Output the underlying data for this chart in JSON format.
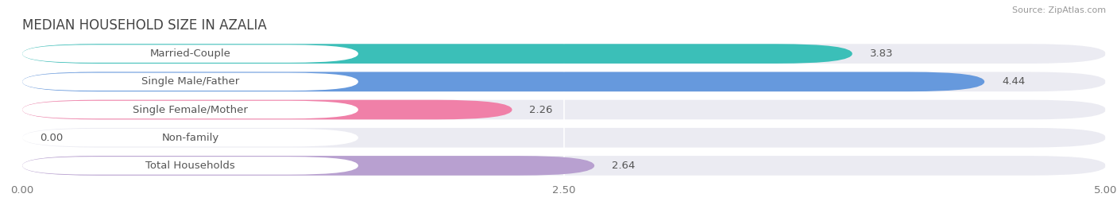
{
  "title": "MEDIAN HOUSEHOLD SIZE IN AZALIA",
  "source": "Source: ZipAtlas.com",
  "categories": [
    "Married-Couple",
    "Single Male/Father",
    "Single Female/Mother",
    "Non-family",
    "Total Households"
  ],
  "values": [
    3.83,
    4.44,
    2.26,
    0.0,
    2.64
  ],
  "bar_colors": [
    "#3bbfb8",
    "#6699dd",
    "#f080a8",
    "#f5c899",
    "#b8a0d0"
  ],
  "label_pill_border_colors": [
    "#3bbfb8",
    "#6699dd",
    "#f080a8",
    "#f5c899",
    "#b8a0d0"
  ],
  "xlim": [
    0,
    5.0
  ],
  "xticks": [
    0.0,
    2.5,
    5.0
  ],
  "xtick_labels": [
    "0.00",
    "2.50",
    "5.00"
  ],
  "page_background_color": "#ffffff",
  "bar_background_color": "#ebebf2",
  "bar_gap_color": "#ffffff",
  "title_fontsize": 12,
  "label_fontsize": 9.5,
  "value_fontsize": 9.5
}
